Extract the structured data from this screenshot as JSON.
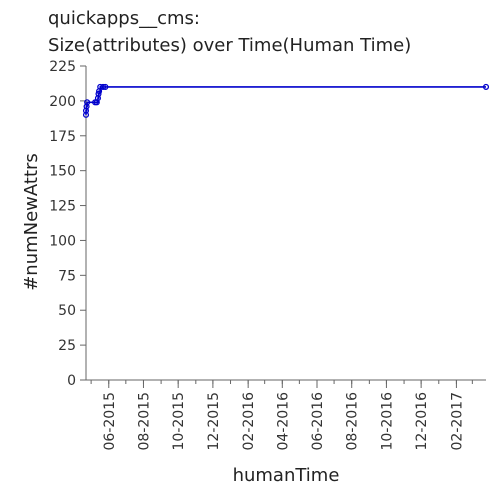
{
  "chart_data": {
    "type": "line",
    "title": "quickapps__cms:",
    "subtitle": "Size(attributes) over Time(Human Time)",
    "xlabel": "humanTime",
    "ylabel": "#numNewAttrs",
    "x_ticks": [
      "06-2015",
      "08-2015",
      "10-2015",
      "12-2015",
      "02-2016",
      "04-2016",
      "06-2016",
      "08-2016",
      "10-2016",
      "12-2016",
      "02-2017"
    ],
    "y_ticks": [
      "0",
      "25",
      "50",
      "75",
      "100",
      "125",
      "150",
      "175",
      "200",
      "225"
    ],
    "ylim": [
      0,
      225
    ],
    "xlim": [
      "2015-04-22",
      "2017-03-25"
    ],
    "grid": false,
    "legend": "none",
    "series": [
      {
        "color": "#0000cc",
        "points": [
          {
            "x": "2015-04-22",
            "y": 190
          },
          {
            "x": "2015-04-22",
            "y": 193
          },
          {
            "x": "2015-04-23",
            "y": 196
          },
          {
            "x": "2015-04-24",
            "y": 199
          },
          {
            "x": "2015-05-08",
            "y": 199
          },
          {
            "x": "2015-05-11",
            "y": 199
          },
          {
            "x": "2015-05-13",
            "y": 202
          },
          {
            "x": "2015-05-14",
            "y": 205
          },
          {
            "x": "2015-05-15",
            "y": 207
          },
          {
            "x": "2015-05-17",
            "y": 210
          },
          {
            "x": "2015-05-22",
            "y": 210
          },
          {
            "x": "2015-05-26",
            "y": 210
          },
          {
            "x": "2017-03-25",
            "y": 210
          }
        ]
      }
    ]
  }
}
